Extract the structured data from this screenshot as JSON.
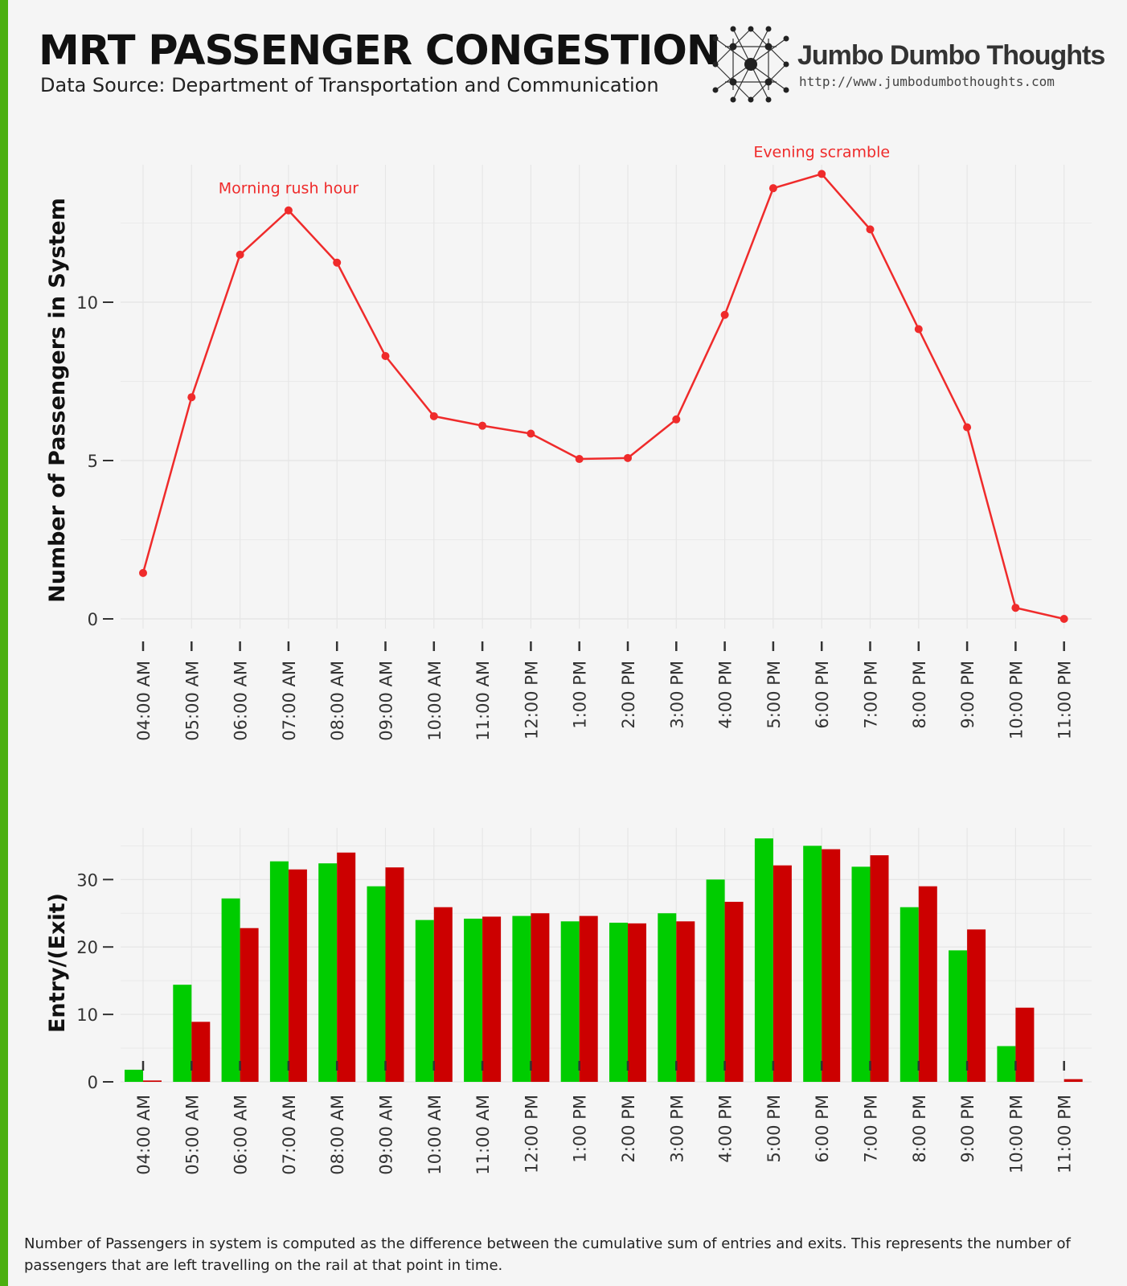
{
  "header": {
    "title": "MRT PASSENGER CONGESTION",
    "subtitle": "Data Source: Department of Transportation and Communication"
  },
  "brand": {
    "name": "Jumbo Dumbo Thoughts",
    "url": "http://www.jumbodumbothoughts.com",
    "logo_icon": "network-dots-icon"
  },
  "footnote": "Number of Passengers in system is computed as the difference between the cumulative sum of entries and exits. This represents the number of passengers that are left travelling on the rail at that point in time.",
  "colors": {
    "accent_bar": "#4caf10",
    "line": "#ef2b2b",
    "entry": "#00cc00",
    "exit": "#cc0000",
    "background": "#f5f5f5",
    "grid": "#e6e6e6"
  },
  "chart_data": [
    {
      "type": "line",
      "ylabel": "Number of Passengers in System",
      "ylim": [
        0,
        14.4
      ],
      "yticks": [
        0,
        5,
        10
      ],
      "grid": true,
      "categories": [
        "04:00 AM",
        "05:00 AM",
        "06:00 AM",
        "07:00 AM",
        "08:00 AM",
        "09:00 AM",
        "10:00 AM",
        "11:00 AM",
        "12:00 PM",
        "1:00 PM",
        "2:00 PM",
        "3:00 PM",
        "4:00 PM",
        "5:00 PM",
        "6:00 PM",
        "7:00 PM",
        "8:00 PM",
        "9:00 PM",
        "10:00 PM",
        "11:00 PM"
      ],
      "series": [
        {
          "values": [
            1.45,
            7.0,
            11.5,
            12.9,
            11.25,
            8.3,
            6.4,
            6.1,
            5.85,
            5.05,
            5.08,
            6.3,
            9.6,
            13.6,
            14.05,
            12.3,
            9.15,
            6.05,
            0.35,
            0.0
          ]
        }
      ],
      "annotations": [
        {
          "text": "Morning rush hour",
          "category": "07:00 AM"
        },
        {
          "text": "Evening scramble",
          "category": "6:00 PM"
        }
      ]
    },
    {
      "type": "bar",
      "ylabel": "Entry/(Exit)",
      "ylim": [
        0,
        37
      ],
      "yticks": [
        0,
        10,
        20,
        30
      ],
      "grid": true,
      "categories": [
        "04:00 AM",
        "05:00 AM",
        "06:00 AM",
        "07:00 AM",
        "08:00 AM",
        "09:00 AM",
        "10:00 AM",
        "11:00 AM",
        "12:00 PM",
        "1:00 PM",
        "2:00 PM",
        "3:00 PM",
        "4:00 PM",
        "5:00 PM",
        "6:00 PM",
        "7:00 PM",
        "8:00 PM",
        "9:00 PM",
        "10:00 PM",
        "11:00 PM"
      ],
      "series": [
        {
          "key": "entry",
          "values": [
            1.8,
            14.4,
            27.2,
            32.7,
            32.4,
            29.0,
            24.0,
            24.2,
            24.6,
            23.8,
            23.6,
            25.0,
            30.0,
            36.1,
            35.0,
            31.9,
            25.9,
            19.5,
            5.3,
            0.0
          ]
        },
        {
          "key": "exit",
          "values": [
            0.2,
            8.9,
            22.8,
            31.5,
            34.0,
            31.8,
            25.9,
            24.5,
            25.0,
            24.6,
            23.5,
            23.8,
            26.7,
            32.1,
            34.5,
            33.6,
            29.0,
            22.6,
            11.0,
            0.4
          ]
        }
      ]
    }
  ]
}
